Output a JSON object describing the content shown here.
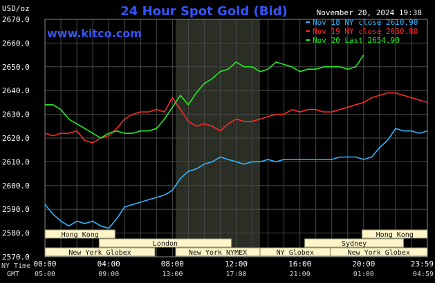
{
  "chart_data": {
    "type": "line",
    "title": "24 Hour Spot Gold (Bid)",
    "website": "www.kitco.com",
    "unit_label": "USD/oz",
    "timestamp": "November 20, 2024 19:38",
    "ylim": [
      2570,
      2670
    ],
    "yticks": [
      "2670.0",
      "2660.0",
      "2650.0",
      "2640.0",
      "2630.0",
      "2620.0",
      "2610.0",
      "2600.0",
      "2590.0",
      "2580.0",
      "2570.0"
    ],
    "x_range_hours": [
      0,
      24
    ],
    "xticks_ny": [
      "00:00",
      "04:00",
      "08:00",
      "12:00",
      "16:00",
      "20:00",
      "23:59"
    ],
    "xticks_gmt": [
      "05:00",
      "09:00",
      "13:00",
      "17:00",
      "21:00",
      "01:00",
      "04:59"
    ],
    "xtick_hours": [
      0,
      4,
      8,
      12,
      16,
      20,
      24
    ],
    "xaxis_labels": {
      "ny": "NY Time",
      "gmt": "GMT"
    },
    "highlight_hours": [
      8.2,
      13.5
    ],
    "grid": true,
    "legend_position": "top-right",
    "series": [
      {
        "name": "Nov 18 NY close 2610.90",
        "color": "#2fb6ff",
        "x": [
          0,
          0.5,
          1,
          1.5,
          2,
          2.5,
          3,
          3.5,
          4,
          4.5,
          5,
          5.5,
          6,
          6.5,
          7,
          7.5,
          8,
          8.5,
          9,
          9.5,
          10,
          10.5,
          11,
          11.5,
          12,
          12.5,
          13,
          13.5,
          14,
          14.5,
          15,
          15.5,
          16,
          16.5,
          17,
          17.5,
          18,
          18.5,
          19,
          19.5,
          20,
          20.5,
          21,
          21.5,
          22,
          22.5,
          23,
          23.5,
          24
        ],
        "values": [
          2592,
          2588,
          2585,
          2583,
          2585,
          2584,
          2585,
          2583,
          2582,
          2586,
          2591,
          2592,
          2593,
          2594,
          2595,
          2596,
          2598,
          2603,
          2606,
          2607,
          2609,
          2610,
          2612,
          2611,
          2610,
          2609,
          2610,
          2610,
          2611,
          2610,
          2611,
          2611,
          2611,
          2611,
          2611,
          2611,
          2611,
          2612,
          2612,
          2612,
          2611,
          2612,
          2616,
          2619,
          2624,
          2623,
          2623,
          2622,
          2623
        ]
      },
      {
        "name": "Nov 19 NY close 2630.80",
        "color": "#ff2a2a",
        "x": [
          0,
          0.5,
          1,
          1.5,
          2,
          2.5,
          3,
          3.5,
          4,
          4.5,
          5,
          5.5,
          6,
          6.5,
          7,
          7.5,
          8,
          8.5,
          9,
          9.5,
          10,
          10.5,
          11,
          11.5,
          12,
          12.5,
          13,
          13.5,
          14,
          14.5,
          15,
          15.5,
          16,
          16.5,
          17,
          17.5,
          18,
          18.5,
          19,
          19.5,
          20,
          20.5,
          21,
          21.5,
          22,
          22.5,
          23,
          23.5,
          24
        ],
        "values": [
          2622,
          2621,
          2622,
          2622,
          2623,
          2619,
          2618,
          2620,
          2621,
          2624,
          2628,
          2630,
          2631,
          2631,
          2632,
          2631,
          2637,
          2632,
          2627,
          2625,
          2626,
          2625,
          2623,
          2626,
          2628,
          2627,
          2627,
          2628,
          2629,
          2630,
          2630,
          2632,
          2631,
          2632,
          2632,
          2631,
          2631,
          2632,
          2633,
          2634,
          2635,
          2637,
          2638,
          2639,
          2639,
          2638,
          2637,
          2636,
          2635
        ]
      },
      {
        "name": "Nov 20 Last 2654.90",
        "color": "#22ee22",
        "x": [
          0,
          0.5,
          1,
          1.5,
          2,
          2.5,
          3,
          3.5,
          4,
          4.5,
          5,
          5.5,
          6,
          6.5,
          7,
          7.5,
          8,
          8.5,
          9,
          9.5,
          10,
          10.5,
          11,
          11.5,
          12,
          12.5,
          13,
          13.5,
          14,
          14.5,
          15,
          15.5,
          16,
          16.5,
          17,
          17.5,
          18,
          18.5,
          19,
          19.5,
          20
        ],
        "values": [
          2634,
          2634,
          2632,
          2628,
          2626,
          2624,
          2622,
          2620,
          2622,
          2623,
          2622,
          2622,
          2623,
          2623,
          2624,
          2628,
          2633,
          2638,
          2634,
          2639,
          2643,
          2645,
          2648,
          2649,
          2652,
          2650,
          2650,
          2648,
          2649,
          2652,
          2651,
          2650,
          2648,
          2649,
          2649,
          2650,
          2650,
          2650,
          2649,
          2650,
          2655
        ]
      }
    ],
    "sessions": [
      {
        "label": "Hong Kong",
        "row": 0,
        "start": 0,
        "end": 4.4
      },
      {
        "label": "Hong Kong",
        "row": 0,
        "start": 19.9,
        "end": 24
      },
      {
        "label": "London",
        "row": 1,
        "start": 3.4,
        "end": 11.7
      },
      {
        "label": "Sydney",
        "row": 1,
        "start": 16.3,
        "end": 22.5
      },
      {
        "label": "New York Globex",
        "row": 2,
        "start": 0,
        "end": 6.9
      },
      {
        "label": "New York NYMEX",
        "row": 2,
        "start": 8.2,
        "end": 13.5
      },
      {
        "label": "NY Globex",
        "row": 2,
        "start": 13.5,
        "end": 17.9
      },
      {
        "label": "New York Globex",
        "row": 2,
        "start": 17.9,
        "end": 24
      }
    ]
  },
  "colors": {
    "background": "#000000",
    "grid": "#4a4a4a",
    "highlight": "#2a2e24",
    "session_fill": "#fff5c8",
    "title": "#3355ff"
  }
}
